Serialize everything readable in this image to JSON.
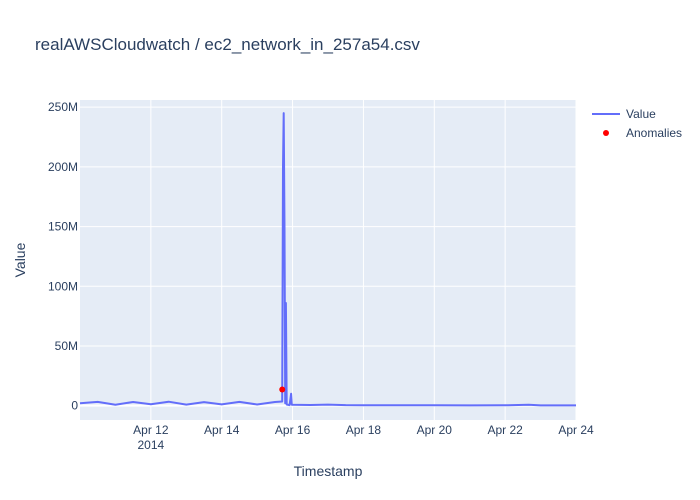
{
  "chart_data": {
    "type": "line",
    "title": "realAWSCloudwatch / ec2_network_in_257a54.csv",
    "xlabel": "Timestamp",
    "ylabel": "Value",
    "x_range": [
      "2014-04-10T00:00",
      "2014-04-24T00:00"
    ],
    "ylim": [
      -12000000,
      256000000
    ],
    "y_ticks": [
      {
        "value": 0,
        "label": "0"
      },
      {
        "value": 50000000,
        "label": "50M"
      },
      {
        "value": 100000000,
        "label": "100M"
      },
      {
        "value": 150000000,
        "label": "150M"
      },
      {
        "value": 200000000,
        "label": "200M"
      },
      {
        "value": 250000000,
        "label": "250M"
      }
    ],
    "x_ticks": [
      {
        "value": "2014-04-12T00:00",
        "label": "Apr 12",
        "sublabel": "2014"
      },
      {
        "value": "2014-04-14T00:00",
        "label": "Apr 14"
      },
      {
        "value": "2014-04-16T00:00",
        "label": "Apr 16"
      },
      {
        "value": "2014-04-18T00:00",
        "label": "Apr 18"
      },
      {
        "value": "2014-04-20T00:00",
        "label": "Apr 20"
      },
      {
        "value": "2014-04-22T00:00",
        "label": "Apr 22"
      },
      {
        "value": "2014-04-24T00:00",
        "label": "Apr 24"
      }
    ],
    "series": [
      {
        "name": "Value",
        "color": "#636efa",
        "mode": "lines",
        "points": [
          {
            "x": "2014-04-10T00:00",
            "y": 2000000
          },
          {
            "x": "2014-04-10T12:00",
            "y": 3200000
          },
          {
            "x": "2014-04-11T00:00",
            "y": 800000
          },
          {
            "x": "2014-04-11T12:00",
            "y": 3100000
          },
          {
            "x": "2014-04-12T00:00",
            "y": 1200000
          },
          {
            "x": "2014-04-12T12:00",
            "y": 3300000
          },
          {
            "x": "2014-04-13T00:00",
            "y": 900000
          },
          {
            "x": "2014-04-13T12:00",
            "y": 3000000
          },
          {
            "x": "2014-04-14T00:00",
            "y": 1100000
          },
          {
            "x": "2014-04-14T12:00",
            "y": 3200000
          },
          {
            "x": "2014-04-15T00:00",
            "y": 1000000
          },
          {
            "x": "2014-04-15T12:00",
            "y": 3100000
          },
          {
            "x": "2014-04-15T17:00",
            "y": 3500000
          },
          {
            "x": "2014-04-15T17:30",
            "y": 200000000
          },
          {
            "x": "2014-04-15T18:00",
            "y": 245000000
          },
          {
            "x": "2014-04-15T18:30",
            "y": 150000000
          },
          {
            "x": "2014-04-15T19:00",
            "y": 2000000
          },
          {
            "x": "2014-04-15T19:30",
            "y": 86000000
          },
          {
            "x": "2014-04-15T20:00",
            "y": 1000000
          },
          {
            "x": "2014-04-15T22:00",
            "y": 500000
          },
          {
            "x": "2014-04-15T23:00",
            "y": 10000000
          },
          {
            "x": "2014-04-15T23:30",
            "y": 800000
          },
          {
            "x": "2014-04-16T12:00",
            "y": 600000
          },
          {
            "x": "2014-04-17T00:00",
            "y": 900000
          },
          {
            "x": "2014-04-17T12:00",
            "y": 500000
          },
          {
            "x": "2014-04-18T00:00",
            "y": 400000
          },
          {
            "x": "2014-04-19T00:00",
            "y": 300000
          },
          {
            "x": "2014-04-20T00:00",
            "y": 300000
          },
          {
            "x": "2014-04-21T00:00",
            "y": 250000
          },
          {
            "x": "2014-04-22T00:00",
            "y": 300000
          },
          {
            "x": "2014-04-22T16:00",
            "y": 700000
          },
          {
            "x": "2014-04-23T00:00",
            "y": 250000
          },
          {
            "x": "2014-04-24T00:00",
            "y": 250000
          }
        ]
      },
      {
        "name": "Anomalies",
        "color": "#ff0000",
        "mode": "markers",
        "points": [
          {
            "x": "2014-04-15T17:00",
            "y": 13500000
          }
        ]
      }
    ],
    "legend": {
      "placement": "top-right"
    },
    "grid": true
  }
}
